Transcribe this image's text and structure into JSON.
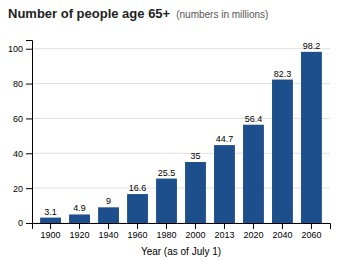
{
  "chart_data": {
    "type": "bar",
    "title": "Number of people age 65+",
    "subtitle": "(numbers in millions)",
    "xlabel": "Year (as of July 1)",
    "categories": [
      "1900",
      "1920",
      "1940",
      "1960",
      "1980",
      "2000",
      "2013",
      "2020",
      "2040",
      "2060"
    ],
    "values": [
      3.1,
      4.9,
      9,
      16.6,
      25.5,
      35,
      44.7,
      56.4,
      82.3,
      98.2
    ],
    "color": "#1d4f8c",
    "ylim": [
      0,
      105
    ],
    "yticks": [
      0,
      20,
      40,
      60,
      80,
      100
    ],
    "grid": true,
    "data_labels": true
  }
}
